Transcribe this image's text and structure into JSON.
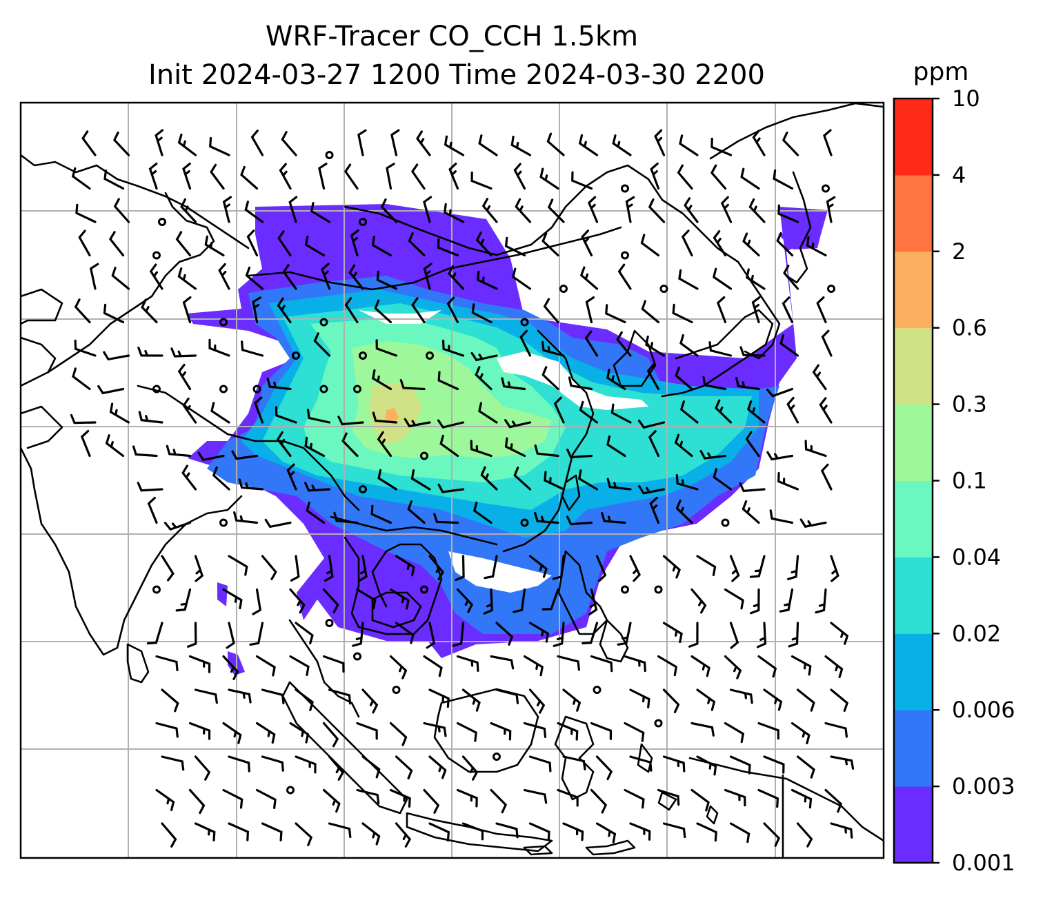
{
  "figure": {
    "title_line1": "WRF-Tracer CO_CCH 1.5km",
    "title_line2": "Init 2024-03-27 1200 Time 2024-03-30 2200"
  },
  "colorbar": {
    "unit": "ppm",
    "tick_labels": [
      "0.001",
      "0.003",
      "0.006",
      "0.02",
      "0.04",
      "0.1",
      "0.3",
      "0.6",
      "2",
      "4",
      "10"
    ],
    "levels": [
      {
        "range": "0.001-0.003",
        "color": "#6a2cff"
      },
      {
        "range": "0.003-0.006",
        "color": "#3277f7"
      },
      {
        "range": "0.006-0.02",
        "color": "#09b0e8"
      },
      {
        "range": "0.02-0.04",
        "color": "#2ee0d3"
      },
      {
        "range": "0.04-0.1",
        "color": "#6af8c0"
      },
      {
        "range": "0.1-0.3",
        "color": "#9cf89a"
      },
      {
        "range": "0.3-0.6",
        "color": "#d1e186"
      },
      {
        "range": "0.6-2",
        "color": "#fdb060"
      },
      {
        "range": "2-4",
        "color": "#ff7440"
      },
      {
        "range": "4-10",
        "color": "#ff2a18"
      }
    ]
  },
  "map": {
    "gridlines": true,
    "projection": "lat-lon",
    "features": [
      "coastlines",
      "country borders",
      "wind barbs",
      "CO tracer shading"
    ]
  }
}
